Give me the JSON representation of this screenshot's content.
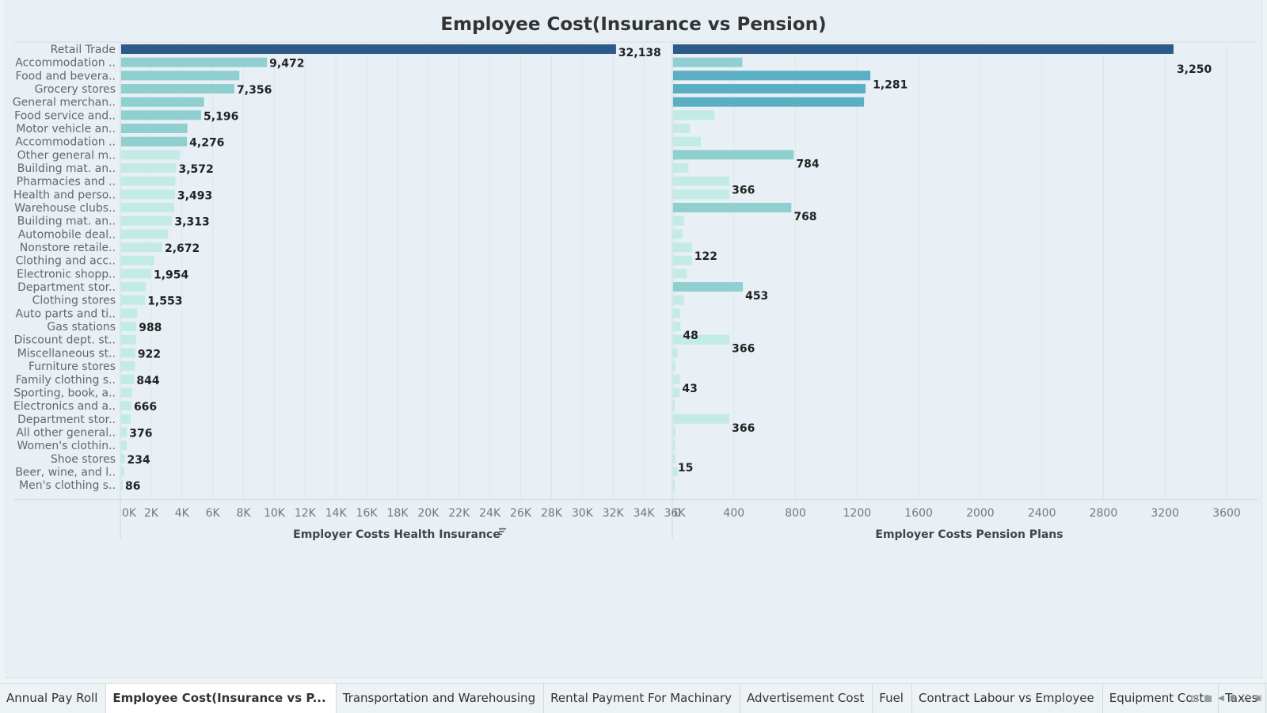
{
  "colors": {
    "dark": "#2e5a8a",
    "mid": "#5aafc3",
    "light": "#a8ddd8",
    "pale": "#c3ebe5"
  },
  "chart_data": {
    "type": "bar",
    "orientation": "horizontal",
    "title": "Employee Cost(Insurance vs Pension)",
    "categories": [
      "Retail Trade",
      "Accommodation ..",
      "Food and bevera..",
      "Grocery stores",
      "General merchan..",
      "Food service and..",
      "Motor vehicle an..",
      "Accommodation ..",
      "Other general m..",
      "Building mat. an..",
      "Pharmacies and ..",
      "Health and perso..",
      "Warehouse clubs..",
      "Building mat. an..",
      "Automobile deal..",
      "Nonstore retaile..",
      "Clothing and acc..",
      "Electronic shopp..",
      "Department stor..",
      "Clothing stores",
      "Auto parts and ti..",
      "Gas stations",
      "Discount dept. st..",
      "Miscellaneous st..",
      "Furniture stores",
      "Family clothing s..",
      "Sporting, book, a..",
      "Electronics and a..",
      "Department stor..",
      "All other general..",
      "Women's clothin..",
      "Shoe stores",
      "Beer, wine, and l..",
      "Men's clothing s.."
    ],
    "series": [
      {
        "name": "Employer Costs Health Insurance",
        "values": [
          32138,
          9472,
          7680,
          7356,
          5380,
          5196,
          4300,
          4276,
          3820,
          3572,
          3520,
          3493,
          3450,
          3313,
          3050,
          2672,
          2150,
          1954,
          1600,
          1553,
          1050,
          988,
          960,
          922,
          900,
          844,
          700,
          666,
          620,
          376,
          360,
          234,
          200,
          86
        ],
        "labels": [
          "32,138",
          "9,472",
          "",
          "7,356",
          "",
          "5,196",
          "",
          "4,276",
          "",
          "3,572",
          "",
          "3,493",
          "",
          "3,313",
          "",
          "2,672",
          "",
          "1,954",
          "",
          "1,553",
          "",
          "988",
          "",
          "922",
          "",
          "844",
          "",
          "666",
          "",
          "376",
          "",
          "234",
          "",
          "86"
        ]
      },
      {
        "name": "Employer Costs Pension Plans",
        "values": [
          3250,
          450,
          1281,
          1250,
          1240,
          270,
          110,
          180,
          784,
          100,
          366,
          366,
          768,
          70,
          60,
          122,
          122,
          90,
          453,
          70,
          45,
          48,
          366,
          30,
          15,
          43,
          43,
          10,
          366,
          15,
          15,
          15,
          30,
          8
        ],
        "labels": [
          "3,250",
          "",
          "1,281",
          "",
          "",
          "",
          "",
          "",
          "784",
          "",
          "366",
          "",
          "768",
          "",
          "",
          "122",
          "",
          "",
          "453",
          "",
          "",
          "48",
          "366",
          "",
          "",
          "43",
          "",
          "",
          "366",
          "",
          "",
          "15",
          "",
          ""
        ]
      }
    ],
    "left_axis": {
      "ticks": [
        "0K",
        "2K",
        "4K",
        "6K",
        "8K",
        "10K",
        "12K",
        "14K",
        "16K",
        "18K",
        "20K",
        "22K",
        "24K",
        "26K",
        "28K",
        "30K",
        "32K",
        "34K",
        "36K"
      ],
      "max": 36000,
      "title": "Employer Costs Health Insurance",
      "sort_icon": "sort-descending-icon"
    },
    "right_axis": {
      "ticks": [
        "0",
        "400",
        "800",
        "1200",
        "1600",
        "2000",
        "2400",
        "2800",
        "3200",
        "3600"
      ],
      "max": 3600,
      "title": "Employer Costs Pension Plans"
    },
    "grid": true
  },
  "tabs": [
    {
      "label": "Annual Pay Roll",
      "active": false
    },
    {
      "label": "Employee Cost(Insurance vs P...",
      "active": true
    },
    {
      "label": "Transportation and Warehousing",
      "active": false
    },
    {
      "label": "Rental Payment For Machinary",
      "active": false
    },
    {
      "label": "Advertisement Cost",
      "active": false
    },
    {
      "label": "Fuel",
      "active": false
    },
    {
      "label": "Contract Labour vs Employee",
      "active": false
    },
    {
      "label": "Equipment Costs",
      "active": false
    },
    {
      "label": "Taxes",
      "active": false
    }
  ]
}
